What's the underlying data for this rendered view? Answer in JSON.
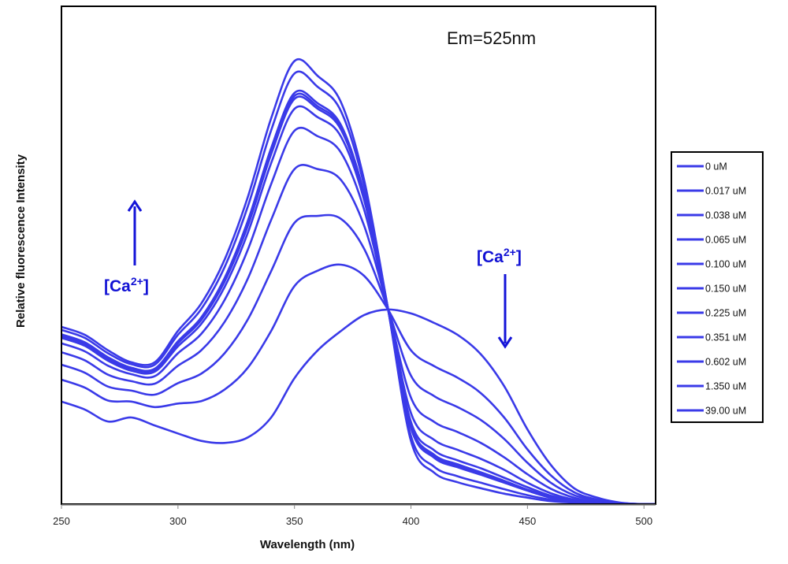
{
  "chart_data": {
    "type": "line",
    "title": "",
    "xlabel": "Wavelength (nm)",
    "ylabel": "Relative fluorescence Intensity",
    "xlim": [
      250,
      505
    ],
    "ylim": [
      0,
      100
    ],
    "xticks": [
      250,
      300,
      350,
      400,
      450,
      500
    ],
    "yticks": [],
    "grid": false,
    "legend_placement": "right",
    "line_color": "#3a3ae8",
    "annotations": {
      "em": "Em=525nm",
      "ca_left": "[Ca",
      "ca_left_sup": "2+",
      "ca_left_close": "]",
      "ca_left_arrow": "up",
      "ca_right": "[Ca",
      "ca_right_sup": "2+",
      "ca_right_close": "]",
      "ca_right_arrow": "down",
      "arrow_color": "#1414d8"
    },
    "x": [
      250,
      260,
      270,
      280,
      290,
      300,
      310,
      320,
      330,
      340,
      350,
      360,
      370,
      380,
      390,
      400,
      410,
      420,
      430,
      440,
      450,
      460,
      470,
      480,
      490,
      500,
      505
    ],
    "series": [
      {
        "name": "0 uM",
        "values": [
          20.6,
          19.0,
          16.6,
          17.4,
          15.8,
          14.2,
          12.7,
          12.3,
          13.4,
          17.4,
          25.3,
          30.9,
          34.8,
          38.0,
          39.1,
          38.3,
          36.4,
          34.0,
          30.1,
          23.7,
          15.0,
          7.9,
          3.2,
          1.3,
          0.3,
          0,
          0
        ]
      },
      {
        "name": "0.017 uM",
        "values": [
          25.0,
          23.4,
          20.8,
          20.6,
          19.5,
          20.2,
          20.7,
          23.0,
          27.4,
          34.8,
          43.8,
          46.9,
          48.1,
          45.8,
          39.2,
          30.9,
          27.7,
          25.4,
          22.3,
          17.4,
          11.0,
          5.8,
          2.4,
          0.9,
          0.2,
          0,
          0
        ]
      },
      {
        "name": "0.038 uM",
        "values": [
          28.0,
          26.4,
          23.6,
          22.8,
          22.0,
          24.3,
          26.2,
          30.3,
          37.1,
          46.8,
          56.5,
          57.9,
          57.3,
          51.2,
          39.3,
          25.8,
          21.7,
          19.5,
          16.9,
          13.1,
          8.3,
          4.3,
          1.8,
          0.7,
          0.2,
          0,
          0
        ]
      },
      {
        "name": "0.065 uM",
        "values": [
          30.5,
          28.9,
          26.0,
          24.7,
          24.2,
          27.8,
          30.9,
          36.6,
          45.3,
          57.1,
          67.3,
          67.3,
          65.1,
          55.8,
          39.4,
          21.4,
          16.5,
          14.5,
          12.3,
          9.4,
          6.0,
          3.1,
          1.3,
          0.4,
          0.1,
          0,
          0
        ]
      },
      {
        "name": "0.100 uM",
        "values": [
          32.3,
          30.7,
          27.8,
          26.1,
          25.7,
          30.3,
          34.2,
          41.0,
          51.1,
          64.3,
          75.0,
          73.9,
          70.6,
          59.0,
          39.5,
          18.3,
          12.9,
          10.9,
          9.1,
          6.9,
          4.3,
          2.2,
          0.9,
          0.3,
          0.1,
          0,
          0
        ]
      },
      {
        "name": "0.150 uM",
        "values": [
          33.4,
          31.8,
          28.8,
          26.8,
          26.6,
          31.7,
          36.2,
          43.6,
          54.5,
          68.5,
          79.4,
          77.7,
          73.8,
          60.9,
          39.5,
          16.5,
          10.8,
          8.8,
          7.2,
          5.3,
          3.4,
          1.7,
          0.7,
          0.2,
          0,
          0,
          0
        ]
      },
      {
        "name": "0.225 uM",
        "values": [
          33.8,
          32.2,
          29.2,
          27.2,
          27.0,
          32.3,
          37.0,
          44.7,
          55.9,
          70.3,
          81.4,
          79.4,
          75.2,
          61.7,
          39.5,
          15.8,
          9.9,
          8.0,
          6.4,
          4.7,
          2.9,
          1.5,
          0.6,
          0.2,
          0,
          0,
          0
        ]
      },
      {
        "name": "0.351 uM",
        "values": [
          34.0,
          32.4,
          29.3,
          27.3,
          27.1,
          32.5,
          37.3,
          45.1,
          56.4,
          70.9,
          82.0,
          79.9,
          75.7,
          61.9,
          39.5,
          15.5,
          9.6,
          7.7,
          6.2,
          4.5,
          2.8,
          1.4,
          0.6,
          0.2,
          0,
          0,
          0
        ]
      },
      {
        "name": "0.602 uM",
        "values": [
          34.1,
          32.5,
          29.5,
          27.4,
          27.2,
          32.7,
          37.5,
          45.4,
          56.9,
          71.5,
          82.6,
          80.5,
          76.1,
          62.2,
          39.6,
          15.3,
          9.3,
          7.4,
          5.9,
          4.3,
          2.7,
          1.3,
          0.6,
          0.1,
          0,
          0,
          0
        ]
      },
      {
        "name": "1.350 uM",
        "values": [
          35.0,
          33.4,
          30.3,
          28.1,
          28.0,
          34.0,
          39.2,
          47.6,
          59.8,
          75.1,
          86.5,
          83.8,
          78.9,
          63.8,
          39.6,
          13.7,
          7.5,
          5.6,
          4.3,
          3.0,
          1.8,
          0.9,
          0.4,
          0.1,
          0,
          0,
          0
        ]
      },
      {
        "name": "39.00 uM",
        "values": [
          35.6,
          34.0,
          30.9,
          28.5,
          28.5,
          34.8,
          40.3,
          49.1,
          61.7,
          77.5,
          89.0,
          86.0,
          80.7,
          64.9,
          39.6,
          12.7,
          6.3,
          4.4,
          3.2,
          2.1,
          1.3,
          0.6,
          0.3,
          0,
          0,
          0,
          0
        ]
      }
    ]
  }
}
